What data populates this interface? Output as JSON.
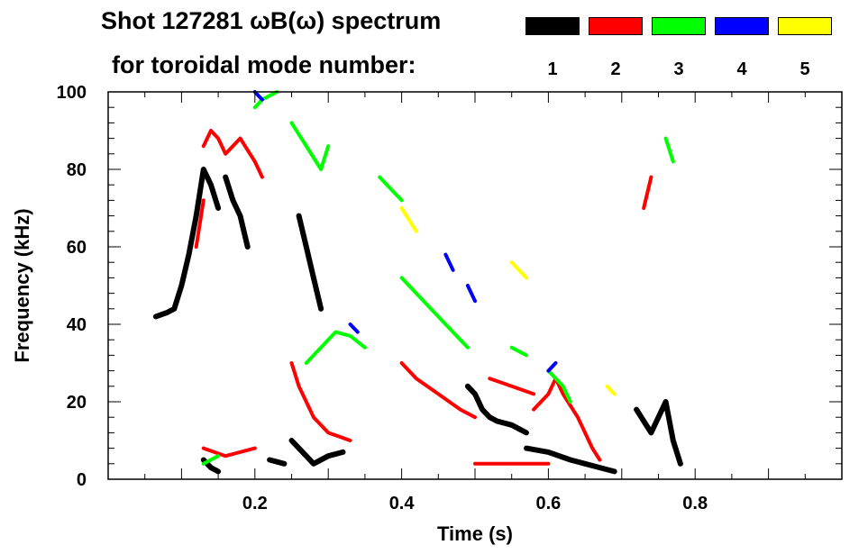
{
  "title_line1": "Shot 127281 ωB(ω) spectrum",
  "title_line2": "for toroidal mode number:",
  "legend": [
    {
      "label": "1",
      "color": "#000000"
    },
    {
      "label": "2",
      "color": "#ff0000"
    },
    {
      "label": "3",
      "color": "#00ff00"
    },
    {
      "label": "4",
      "color": "#0000ff"
    },
    {
      "label": "5",
      "color": "#ffff00"
    }
  ],
  "chart_data": {
    "type": "scatter",
    "title": "Shot 127281 ωB(ω) spectrum",
    "xlabel": "Time (s)",
    "ylabel": "Frequency (kHz)",
    "xlim": [
      0.0,
      1.0
    ],
    "ylim": [
      0,
      100
    ],
    "xticks": [
      0.2,
      0.4,
      0.6,
      0.8
    ],
    "xtick_labels": [
      "0.2",
      "0.4",
      "0.6",
      "0.8"
    ],
    "yticks": [
      0,
      20,
      40,
      60,
      80,
      100
    ],
    "ytick_labels": [
      "0",
      "20",
      "40",
      "60",
      "80",
      "100"
    ],
    "grid": false,
    "legend_position": "top",
    "series": [
      {
        "name": "1",
        "color": "#000000",
        "strokes": [
          [
            [
              0.065,
              42
            ],
            [
              0.08,
              43
            ],
            [
              0.09,
              44
            ],
            [
              0.1,
              50
            ],
            [
              0.11,
              58
            ],
            [
              0.12,
              68
            ],
            [
              0.13,
              80
            ],
            [
              0.14,
              76
            ],
            [
              0.15,
              70
            ]
          ],
          [
            [
              0.13,
              5
            ],
            [
              0.14,
              3
            ],
            [
              0.15,
              2
            ]
          ],
          [
            [
              0.16,
              78
            ],
            [
              0.17,
              72
            ],
            [
              0.18,
              68
            ],
            [
              0.19,
              60
            ]
          ],
          [
            [
              0.22,
              5
            ],
            [
              0.24,
              4
            ]
          ],
          [
            [
              0.26,
              68
            ],
            [
              0.27,
              60
            ],
            [
              0.28,
              52
            ],
            [
              0.29,
              44
            ]
          ],
          [
            [
              0.25,
              10
            ],
            [
              0.26,
              8
            ],
            [
              0.27,
              6
            ],
            [
              0.28,
              4
            ],
            [
              0.3,
              6
            ],
            [
              0.32,
              7
            ]
          ],
          [
            [
              0.49,
              24
            ],
            [
              0.5,
              22
            ],
            [
              0.51,
              18
            ],
            [
              0.52,
              16
            ],
            [
              0.53,
              15
            ],
            [
              0.55,
              14
            ],
            [
              0.57,
              12
            ]
          ],
          [
            [
              0.57,
              8
            ],
            [
              0.6,
              7
            ],
            [
              0.63,
              5
            ],
            [
              0.65,
              4
            ],
            [
              0.67,
              3
            ],
            [
              0.69,
              2
            ]
          ],
          [
            [
              0.72,
              18
            ],
            [
              0.74,
              12
            ],
            [
              0.76,
              20
            ],
            [
              0.77,
              10
            ],
            [
              0.78,
              4
            ]
          ]
        ]
      },
      {
        "name": "2",
        "color": "#ff0000",
        "strokes": [
          [
            [
              0.12,
              60
            ],
            [
              0.13,
              72
            ]
          ],
          [
            [
              0.13,
              86
            ],
            [
              0.14,
              90
            ],
            [
              0.15,
              88
            ],
            [
              0.16,
              84
            ],
            [
              0.18,
              88
            ],
            [
              0.2,
              82
            ],
            [
              0.21,
              78
            ]
          ],
          [
            [
              0.25,
              30
            ],
            [
              0.26,
              24
            ],
            [
              0.27,
              20
            ],
            [
              0.28,
              16
            ],
            [
              0.3,
              12
            ],
            [
              0.33,
              10
            ]
          ],
          [
            [
              0.4,
              30
            ],
            [
              0.42,
              26
            ],
            [
              0.45,
              22
            ],
            [
              0.48,
              18
            ],
            [
              0.5,
              16
            ]
          ],
          [
            [
              0.52,
              26
            ],
            [
              0.55,
              24
            ],
            [
              0.58,
              22
            ]
          ],
          [
            [
              0.58,
              18
            ],
            [
              0.6,
              22
            ],
            [
              0.61,
              26
            ],
            [
              0.62,
              22
            ],
            [
              0.64,
              16
            ],
            [
              0.66,
              8
            ],
            [
              0.67,
              5
            ]
          ],
          [
            [
              0.13,
              8
            ],
            [
              0.16,
              6
            ],
            [
              0.2,
              8
            ]
          ],
          [
            [
              0.5,
              4
            ],
            [
              0.55,
              4
            ],
            [
              0.6,
              4
            ]
          ],
          [
            [
              0.73,
              70
            ],
            [
              0.74,
              78
            ]
          ]
        ]
      },
      {
        "name": "3",
        "color": "#00ff00",
        "strokes": [
          [
            [
              0.2,
              96
            ],
            [
              0.21,
              98
            ],
            [
              0.23,
              100
            ]
          ],
          [
            [
              0.25,
              92
            ],
            [
              0.27,
              86
            ],
            [
              0.29,
              80
            ],
            [
              0.3,
              86
            ]
          ],
          [
            [
              0.27,
              30
            ],
            [
              0.29,
              34
            ],
            [
              0.31,
              38
            ],
            [
              0.33,
              37
            ],
            [
              0.35,
              34
            ]
          ],
          [
            [
              0.4,
              52
            ],
            [
              0.43,
              46
            ],
            [
              0.46,
              40
            ],
            [
              0.49,
              34
            ]
          ],
          [
            [
              0.55,
              34
            ],
            [
              0.57,
              32
            ]
          ],
          [
            [
              0.6,
              28
            ],
            [
              0.62,
              24
            ],
            [
              0.63,
              20
            ]
          ],
          [
            [
              0.37,
              78
            ],
            [
              0.38,
              76
            ],
            [
              0.4,
              72
            ]
          ],
          [
            [
              0.76,
              88
            ],
            [
              0.77,
              82
            ]
          ],
          [
            [
              0.13,
              4
            ],
            [
              0.15,
              6
            ]
          ]
        ]
      },
      {
        "name": "4",
        "color": "#0000ff",
        "strokes": [
          [
            [
              0.2,
              100
            ],
            [
              0.21,
              98
            ]
          ],
          [
            [
              0.33,
              40
            ],
            [
              0.34,
              38
            ]
          ],
          [
            [
              0.46,
              58
            ],
            [
              0.47,
              54
            ]
          ],
          [
            [
              0.49,
              50
            ],
            [
              0.5,
              46
            ]
          ],
          [
            [
              0.6,
              28
            ],
            [
              0.61,
              30
            ]
          ]
        ]
      },
      {
        "name": "5",
        "color": "#ffff00",
        "strokes": [
          [
            [
              0.4,
              70
            ],
            [
              0.42,
              64
            ]
          ],
          [
            [
              0.55,
              56
            ],
            [
              0.57,
              52
            ]
          ],
          [
            [
              0.68,
              24
            ],
            [
              0.69,
              22
            ]
          ]
        ]
      }
    ]
  }
}
